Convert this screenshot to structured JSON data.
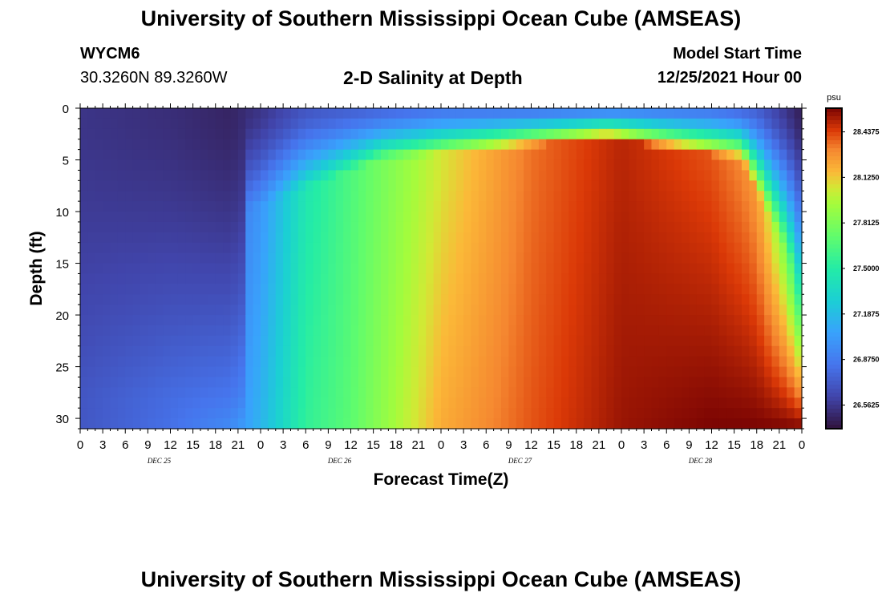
{
  "header": {
    "title": "University of Southern Mississippi Ocean Cube (AMSEAS)",
    "station_id": "WYCM6",
    "station_coords": "30.3260N  89.3260W",
    "plot_title": "2-D Salinity at Depth",
    "model_start_label": "Model Start Time",
    "model_start_value": "12/25/2021 Hour 00",
    "repeat_title": "University of Southern Mississippi Ocean Cube (AMSEAS)"
  },
  "chart_data": {
    "type": "heatmap",
    "variable": "Salinity",
    "units": "psu",
    "xlabel": "Forecast Time(Z)",
    "ylabel": "Depth (ft)",
    "x_tick_labels": [
      "0",
      "3",
      "6",
      "9",
      "12",
      "15",
      "18",
      "21",
      "0",
      "3",
      "6",
      "9",
      "12",
      "15",
      "18",
      "21",
      "0",
      "3",
      "6",
      "9",
      "12",
      "15",
      "18",
      "21",
      "0",
      "3",
      "6",
      "9",
      "12",
      "15",
      "18",
      "21",
      "0"
    ],
    "day_labels": [
      "DEC 25",
      "DEC 26",
      "DEC 27",
      "DEC 28"
    ],
    "x_range_hours": [
      0,
      96
    ],
    "y_ticks": [
      0,
      5,
      10,
      15,
      20,
      25,
      30
    ],
    "y_range_ft": [
      0,
      31
    ],
    "y_inverted": true,
    "colorbar": {
      "min": 26.4,
      "max": 28.6,
      "tick_values": [
        26.5625,
        26.875,
        27.1875,
        27.5,
        27.8125,
        28.125,
        28.4375
      ],
      "tick_labels": [
        "26.5625",
        "26.8750",
        "27.1875",
        "27.5000",
        "27.8125",
        "28.1250",
        "28.4375"
      ]
    },
    "profiles": {
      "description_hours": [
        0,
        12,
        20,
        24,
        30,
        36,
        42,
        48,
        60,
        72,
        84,
        90,
        94,
        96
      ],
      "surface_psu": [
        26.55,
        26.52,
        26.48,
        26.55,
        26.7,
        26.75,
        26.8,
        26.85,
        26.85,
        26.9,
        26.85,
        26.75,
        26.55,
        26.45
      ],
      "mid_psu": [
        26.7,
        26.8,
        26.85,
        27.0,
        27.45,
        27.65,
        27.85,
        28.05,
        28.35,
        28.5,
        28.4,
        28.25,
        27.8,
        27.3
      ],
      "bottom_psu": [
        26.7,
        26.82,
        26.95,
        27.15,
        27.55,
        27.7,
        27.95,
        28.2,
        28.4,
        28.55,
        28.6,
        28.6,
        28.6,
        28.6
      ]
    }
  }
}
